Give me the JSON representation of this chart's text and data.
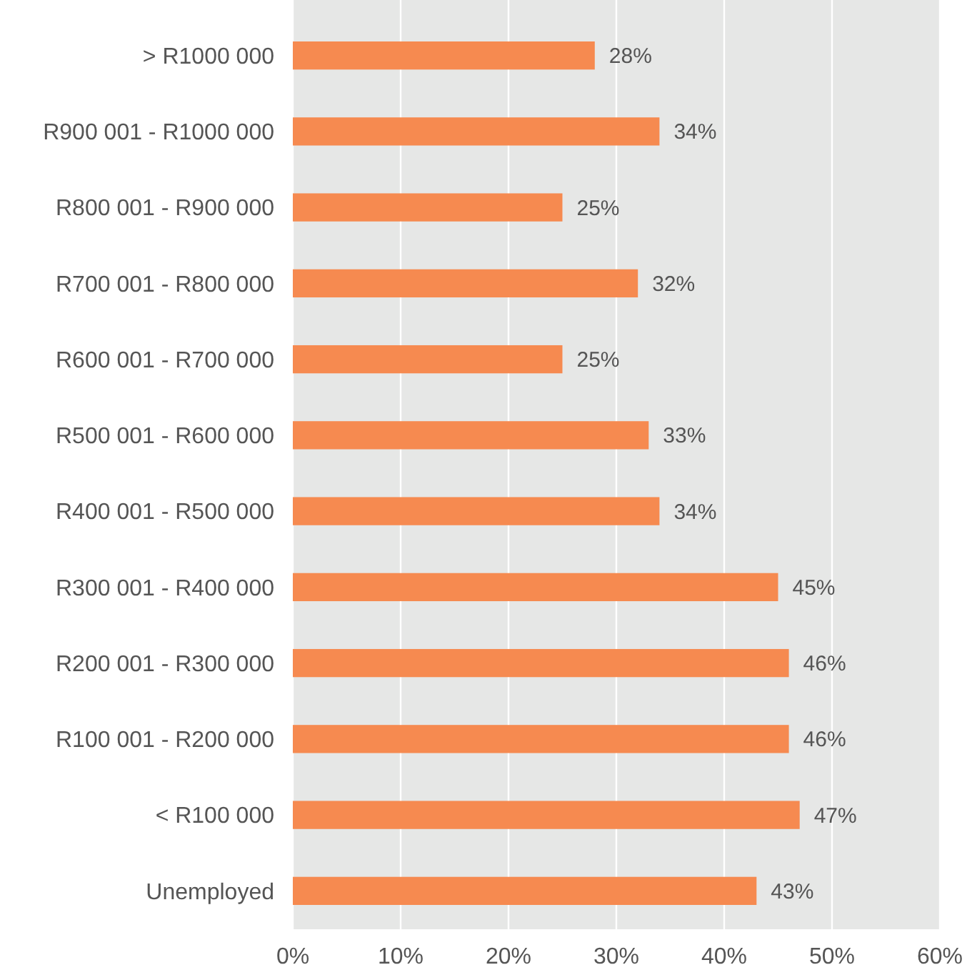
{
  "chart_data": {
    "type": "bar",
    "orientation": "horizontal",
    "categories": [
      "> R1000 000",
      "R900 001 - R1000 000",
      "R800 001 - R900 000",
      "R700 001 - R800 000",
      "R600 001 - R700 000",
      "R500 001 - R600 000",
      "R400 001 - R500 000",
      "R300 001 - R400 000",
      "R200 001 - R300 000",
      "R100 001 - R200 000",
      "< R100 000",
      "Unemployed"
    ],
    "values": [
      28,
      34,
      25,
      32,
      25,
      33,
      34,
      45,
      46,
      46,
      47,
      43
    ],
    "value_labels": [
      "28%",
      "34%",
      "25%",
      "32%",
      "25%",
      "33%",
      "34%",
      "45%",
      "46%",
      "46%",
      "47%",
      "43%"
    ],
    "color": "#f68a50",
    "xlim": [
      0,
      60
    ],
    "xticks": [
      {
        "value": 0,
        "label": "0%"
      },
      {
        "value": 10,
        "label": "10%"
      },
      {
        "value": 20,
        "label": "20%"
      },
      {
        "value": 30,
        "label": "30%"
      },
      {
        "value": 40,
        "label": "40%"
      },
      {
        "value": 50,
        "label": "50%"
      },
      {
        "value": 60,
        "label": "60%"
      }
    ],
    "grid": "x"
  }
}
